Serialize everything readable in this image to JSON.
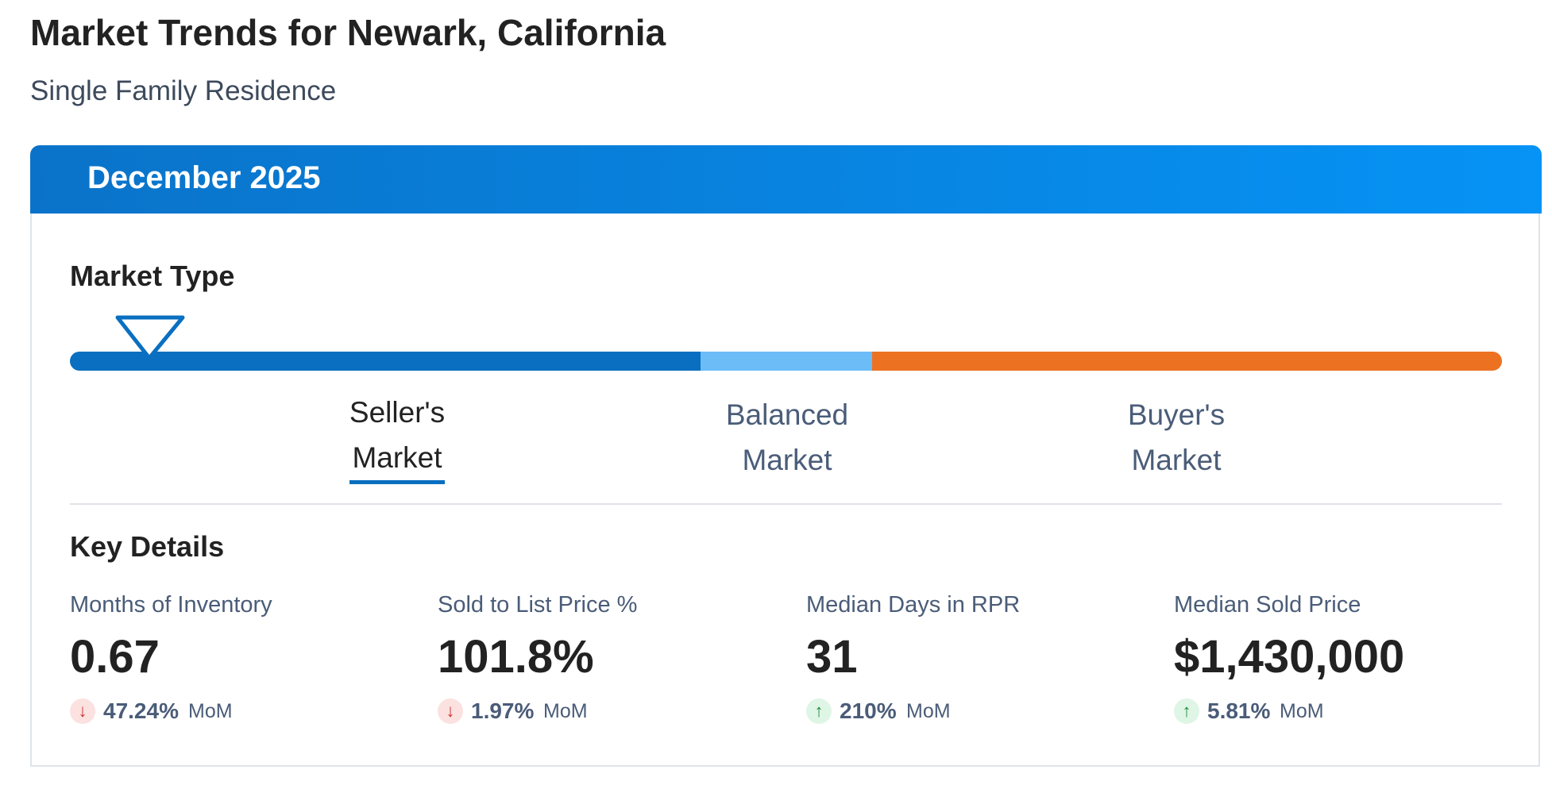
{
  "header": {
    "title": "Market Trends for Newark, California",
    "subtitle": "Single Family Residence"
  },
  "card": {
    "period": "December 2025"
  },
  "market_type": {
    "title": "Market Type",
    "segments": [
      {
        "line1": "Seller's",
        "line2": "Market",
        "active": true
      },
      {
        "line1": "Balanced",
        "line2": "Market",
        "active": false
      },
      {
        "line1": "Buyer's",
        "line2": "Market",
        "active": false
      }
    ]
  },
  "key_details": {
    "title": "Key Details",
    "metrics": [
      {
        "label": "Months of Inventory",
        "value": "0.67",
        "change": "47.24%",
        "direction": "down",
        "period": "MoM"
      },
      {
        "label": "Sold to List Price %",
        "value": "101.8%",
        "change": "1.97%",
        "direction": "down",
        "period": "MoM"
      },
      {
        "label": "Median Days in RPR",
        "value": "31",
        "change": "210%",
        "direction": "up",
        "period": "MoM"
      },
      {
        "label": "Median Sold Price",
        "value": "$1,430,000",
        "change": "5.81%",
        "direction": "up",
        "period": "MoM"
      }
    ]
  }
}
